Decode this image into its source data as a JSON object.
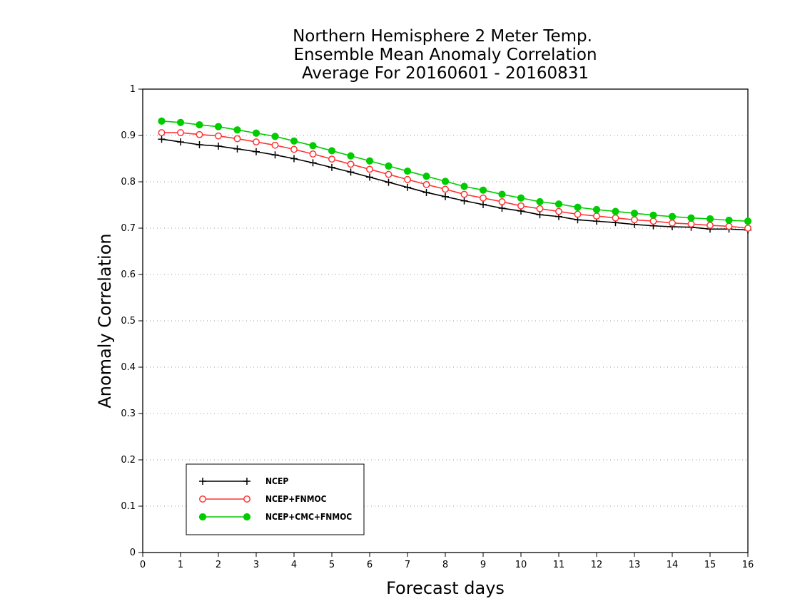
{
  "chart_data": {
    "type": "line",
    "title": [
      "Northern Hemisphere 2 Meter Temp.",
      "Ensemble Mean Anomaly Correlation",
      "Average For 20160601 - 20160831"
    ],
    "xlabel": "Forecast days",
    "ylabel": "Anomaly Correlation",
    "xlim": [
      0,
      16
    ],
    "ylim": [
      0,
      1
    ],
    "xticks": [
      "0",
      "1",
      "2",
      "3",
      "4",
      "5",
      "6",
      "7",
      "8",
      "9",
      "10",
      "11",
      "12",
      "13",
      "14",
      "15",
      "16"
    ],
    "yticks": [
      "0",
      "0.1",
      "0.2",
      "0.3",
      "0.4",
      "0.5",
      "0.6",
      "0.7",
      "0.8",
      "0.9",
      "1"
    ],
    "grid": true,
    "legend_position": "bottom-left",
    "x": [
      0.5,
      1,
      1.5,
      2,
      2.5,
      3,
      3.5,
      4,
      4.5,
      5,
      5.5,
      6,
      6.5,
      7,
      7.5,
      8,
      8.5,
      9,
      9.5,
      10,
      10.5,
      11,
      11.5,
      12,
      12.5,
      13,
      13.5,
      14,
      14.5,
      15,
      15.5,
      16
    ],
    "series": [
      {
        "name": "NCEP",
        "color": "#000000",
        "marker": "plus",
        "values": [
          0.892,
          0.886,
          0.88,
          0.877,
          0.871,
          0.865,
          0.858,
          0.85,
          0.841,
          0.831,
          0.821,
          0.81,
          0.799,
          0.788,
          0.777,
          0.768,
          0.759,
          0.751,
          0.743,
          0.737,
          0.729,
          0.725,
          0.718,
          0.715,
          0.712,
          0.708,
          0.705,
          0.703,
          0.702,
          0.698,
          0.698,
          0.696
        ]
      },
      {
        "name": "NCEP+FNMOC",
        "color": "#ff3333",
        "marker": "open-circle",
        "values": [
          0.906,
          0.906,
          0.902,
          0.899,
          0.893,
          0.886,
          0.879,
          0.87,
          0.86,
          0.849,
          0.838,
          0.827,
          0.816,
          0.805,
          0.794,
          0.784,
          0.773,
          0.765,
          0.757,
          0.748,
          0.742,
          0.736,
          0.73,
          0.726,
          0.722,
          0.718,
          0.715,
          0.711,
          0.709,
          0.706,
          0.704,
          0.7
        ]
      },
      {
        "name": "NCEP+CMC+FNMOC",
        "color": "#00cc00",
        "marker": "filled-circle",
        "values": [
          0.931,
          0.928,
          0.923,
          0.919,
          0.912,
          0.905,
          0.898,
          0.888,
          0.878,
          0.867,
          0.856,
          0.845,
          0.834,
          0.823,
          0.812,
          0.801,
          0.79,
          0.782,
          0.773,
          0.765,
          0.757,
          0.752,
          0.745,
          0.74,
          0.736,
          0.732,
          0.728,
          0.725,
          0.722,
          0.72,
          0.717,
          0.715
        ]
      }
    ]
  }
}
